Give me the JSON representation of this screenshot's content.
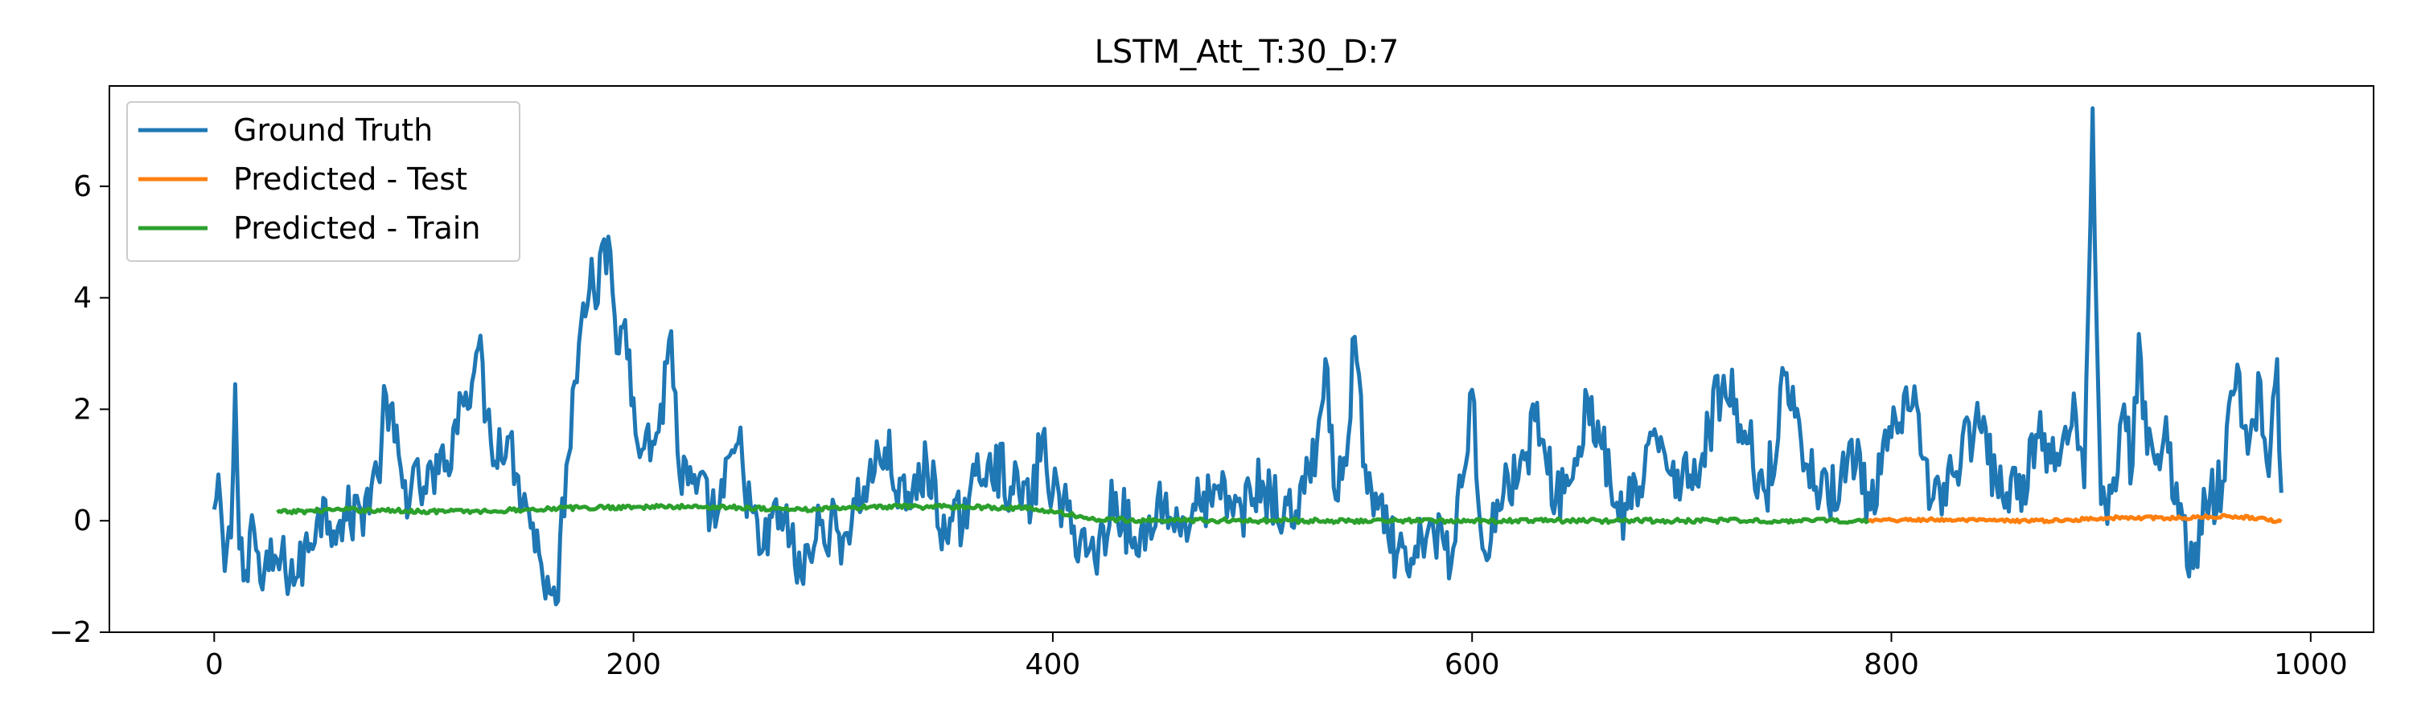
{
  "chart_data": {
    "type": "line",
    "title": "LSTM_Att_T:30_D:7",
    "xlabel": "",
    "ylabel": "",
    "xlim": [
      -50,
      1030
    ],
    "ylim": [
      -2,
      7.8
    ],
    "x_ticks": [
      0,
      200,
      400,
      600,
      800,
      1000
    ],
    "y_ticks": [
      -2,
      0,
      2,
      4,
      6
    ],
    "x_tick_labels": [
      "0",
      "200",
      "400",
      "600",
      "800",
      "1000"
    ],
    "y_tick_labels": [
      "−2",
      "0",
      "2",
      "4",
      "6"
    ],
    "grid": false,
    "legend_position": "top-left",
    "series": [
      {
        "name": "Ground Truth",
        "color": "#1f77b4",
        "x_start": 0,
        "x_end": 986,
        "anchors": [
          [
            0,
            0.2
          ],
          [
            3,
            0.35
          ],
          [
            5,
            -0.9
          ],
          [
            8,
            -0.3
          ],
          [
            10,
            2.45
          ],
          [
            12,
            -0.5
          ],
          [
            15,
            -0.9
          ],
          [
            18,
            0.1
          ],
          [
            22,
            -1.1
          ],
          [
            30,
            -0.7
          ],
          [
            40,
            -1.0
          ],
          [
            50,
            0.2
          ],
          [
            60,
            0.0
          ],
          [
            70,
            0.2
          ],
          [
            78,
            0.8
          ],
          [
            82,
            2.25
          ],
          [
            90,
            0.6
          ],
          [
            100,
            0.6
          ],
          [
            110,
            0.9
          ],
          [
            115,
            1.8
          ],
          [
            120,
            2.3
          ],
          [
            126,
            3.1
          ],
          [
            132,
            1.4
          ],
          [
            140,
            1.5
          ],
          [
            145,
            0.8
          ],
          [
            150,
            0.2
          ],
          [
            155,
            -0.6
          ],
          [
            160,
            -1.3
          ],
          [
            163,
            -1.5
          ],
          [
            168,
            1.0
          ],
          [
            172,
            2.5
          ],
          [
            176,
            3.9
          ],
          [
            180,
            4.7
          ],
          [
            183,
            3.9
          ],
          [
            186,
            5.05
          ],
          [
            190,
            4.1
          ],
          [
            193,
            3.0
          ],
          [
            196,
            3.6
          ],
          [
            200,
            2.2
          ],
          [
            205,
            1.3
          ],
          [
            212,
            1.6
          ],
          [
            218,
            3.4
          ],
          [
            222,
            0.8
          ],
          [
            230,
            0.5
          ],
          [
            240,
            0.1
          ],
          [
            250,
            1.4
          ],
          [
            260,
            -0.6
          ],
          [
            270,
            0.2
          ],
          [
            280,
            -1.0
          ],
          [
            290,
            0.0
          ],
          [
            300,
            -0.3
          ],
          [
            310,
            0.6
          ],
          [
            320,
            1.3
          ],
          [
            330,
            0.2
          ],
          [
            340,
            1.0
          ],
          [
            350,
            -0.4
          ],
          [
            360,
            0.4
          ],
          [
            370,
            1.2
          ],
          [
            380,
            0.6
          ],
          [
            390,
            0.3
          ],
          [
            395,
            1.5
          ],
          [
            400,
            0.5
          ],
          [
            410,
            -0.1
          ],
          [
            420,
            -0.7
          ],
          [
            430,
            0.5
          ],
          [
            440,
            -0.6
          ],
          [
            450,
            0.4
          ],
          [
            460,
            -0.1
          ],
          [
            470,
            0.3
          ],
          [
            480,
            0.4
          ],
          [
            490,
            0.2
          ],
          [
            500,
            0.7
          ],
          [
            510,
            0.0
          ],
          [
            520,
            0.5
          ],
          [
            526,
            1.4
          ],
          [
            530,
            2.9
          ],
          [
            534,
            0.6
          ],
          [
            540,
            1.0
          ],
          [
            544,
            3.3
          ],
          [
            550,
            0.5
          ],
          [
            560,
            -0.3
          ],
          [
            570,
            -1.0
          ],
          [
            580,
            0.0
          ],
          [
            590,
            -0.8
          ],
          [
            600,
            2.35
          ],
          [
            605,
            -0.5
          ],
          [
            615,
            0.5
          ],
          [
            625,
            1.1
          ],
          [
            630,
            1.8
          ],
          [
            640,
            0.4
          ],
          [
            650,
            1.0
          ],
          [
            655,
            2.2
          ],
          [
            662,
            1.3
          ],
          [
            670,
            0.0
          ],
          [
            680,
            0.6
          ],
          [
            690,
            1.5
          ],
          [
            700,
            0.7
          ],
          [
            710,
            1.2
          ],
          [
            720,
            2.6
          ],
          [
            730,
            1.6
          ],
          [
            740,
            0.5
          ],
          [
            750,
            2.65
          ],
          [
            760,
            1.0
          ],
          [
            770,
            0.3
          ],
          [
            780,
            1.4
          ],
          [
            790,
            0.2
          ],
          [
            800,
            1.5
          ],
          [
            810,
            2.05
          ],
          [
            820,
            0.4
          ],
          [
            830,
            0.8
          ],
          [
            840,
            1.8
          ],
          [
            850,
            0.7
          ],
          [
            860,
            0.4
          ],
          [
            870,
            1.5
          ],
          [
            880,
            1.0
          ],
          [
            888,
            1.9
          ],
          [
            892,
            0.6
          ],
          [
            896,
            7.4
          ],
          [
            900,
            0.3
          ],
          [
            905,
            0.5
          ],
          [
            910,
            1.9
          ],
          [
            915,
            1.0
          ],
          [
            918,
            3.35
          ],
          [
            922,
            1.2
          ],
          [
            930,
            1.5
          ],
          [
            938,
            0.3
          ],
          [
            942,
            -1.0
          ],
          [
            950,
            0.3
          ],
          [
            958,
            0.7
          ],
          [
            965,
            2.8
          ],
          [
            970,
            1.2
          ],
          [
            976,
            2.5
          ],
          [
            980,
            0.8
          ],
          [
            984,
            2.9
          ],
          [
            986,
            0.5
          ]
        ],
        "noise_amplitude": 0.55
      },
      {
        "name": "Predicted - Test",
        "color": "#ff7f0e",
        "x_start": 789,
        "x_end": 986,
        "anchors": [
          [
            789,
            0.0
          ],
          [
            820,
            0.02
          ],
          [
            850,
            0.0
          ],
          [
            880,
            0.0
          ],
          [
            900,
            0.05
          ],
          [
            920,
            0.05
          ],
          [
            940,
            0.05
          ],
          [
            960,
            0.08
          ],
          [
            975,
            0.05
          ],
          [
            986,
            -0.02
          ]
        ],
        "noise_amplitude": 0.03
      },
      {
        "name": "Predicted - Train",
        "color": "#2ca02c",
        "x_start": 30,
        "x_end": 789,
        "anchors": [
          [
            30,
            0.15
          ],
          [
            60,
            0.2
          ],
          [
            100,
            0.17
          ],
          [
            130,
            0.17
          ],
          [
            160,
            0.22
          ],
          [
            200,
            0.25
          ],
          [
            240,
            0.25
          ],
          [
            280,
            0.2
          ],
          [
            320,
            0.25
          ],
          [
            360,
            0.25
          ],
          [
            390,
            0.22
          ],
          [
            410,
            0.1
          ],
          [
            420,
            0.02
          ],
          [
            500,
            0.0
          ],
          [
            600,
            0.0
          ],
          [
            700,
            0.0
          ],
          [
            789,
            0.0
          ]
        ],
        "noise_amplitude": 0.04
      }
    ]
  }
}
